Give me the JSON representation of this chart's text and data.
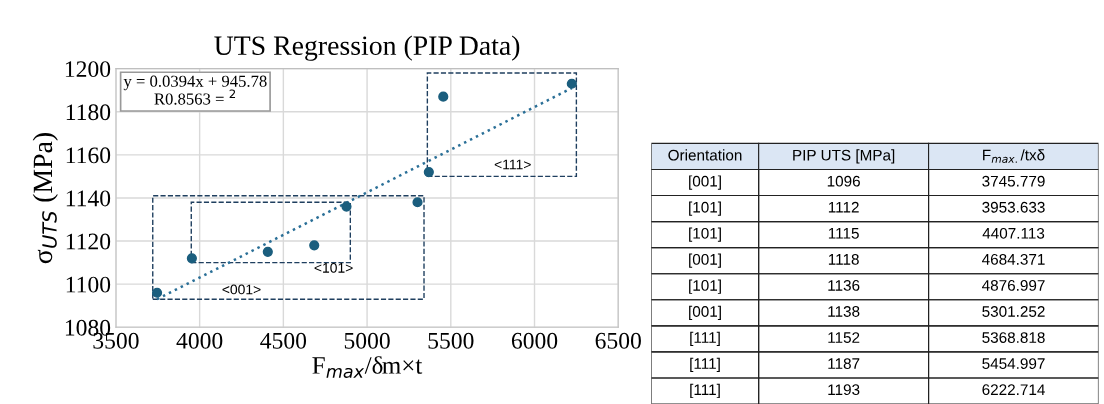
{
  "chart_data": [
    {
      "type": "scatter",
      "title": "UTS Regression (PIP Data)",
      "xlabel": "F$_{max}$/δm×t",
      "ylabel": "σ$_{UTS}$ (MPa)",
      "xlim": [
        3500,
        6500
      ],
      "xticks": [
        3500,
        4000,
        4500,
        5000,
        5500,
        6000,
        6500
      ],
      "ylim": [
        1080,
        1200
      ],
      "yticks": [
        1080,
        1100,
        1120,
        1140,
        1160,
        1180,
        1200
      ],
      "grid": true,
      "series": [
        {
          "type": "scatter",
          "color": "#1b5e7e",
          "marker": "circle",
          "x": [
            3745.779,
            3953.633,
            4407.113,
            4684.371,
            4876.997,
            5301.252,
            5368.818,
            5454.997,
            6222.714
          ],
          "values": [
            1096,
            1112,
            1115,
            1118,
            1136,
            1138,
            1152,
            1187,
            1193
          ]
        },
        {
          "type": "line",
          "color": "#2a6f97",
          "line_style": "dotted",
          "marker": "none",
          "x": [
            3745.779,
            6222.714
          ],
          "values": [
            1093,
            1191
          ]
        }
      ],
      "annotations": [
        "y = 0.0394x + 945.78\nR0.8563 = $^{2}$",
        "<001>",
        "<101>",
        "<111>"
      ]
    },
    {
      "type": "other",
      "annotations": [
        "Orientation"
      ],
      "categories": [
        "[001]",
        "[101]",
        "[101]",
        "[001]",
        "[101]",
        "[001]",
        "[111]",
        "[111]",
        "[111]"
      ],
      "series": [
        {
          "name": "PIP UTS [MPa]",
          "values": [
            1096,
            1112,
            1115,
            1118,
            1136,
            1138,
            1152,
            1187,
            1193
          ]
        },
        {
          "name": "F$_{max.}$/txδ",
          "values": [
            3745.779,
            3953.633,
            4407.113,
            4684.371,
            4876.997,
            5301.252,
            5368.818,
            5454.997,
            6222.714
          ]
        }
      ],
      "data_labels": true
    }
  ]
}
